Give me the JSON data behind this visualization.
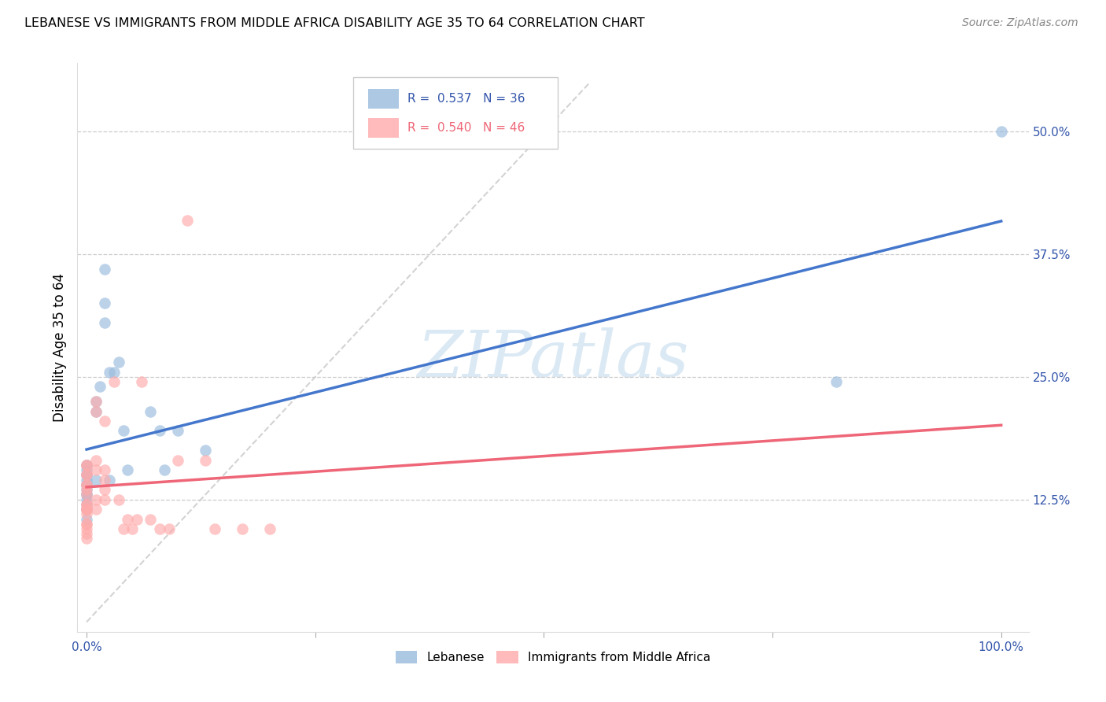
{
  "title": "LEBANESE VS IMMIGRANTS FROM MIDDLE AFRICA DISABILITY AGE 35 TO 64 CORRELATION CHART",
  "source": "Source: ZipAtlas.com",
  "ylabel": "Disability Age 35 to 64",
  "x_min": 0.0,
  "x_max": 1.0,
  "y_min": 0.0,
  "y_max": 0.55,
  "y_ticks": [
    0.125,
    0.25,
    0.375,
    0.5
  ],
  "y_tick_labels": [
    "12.5%",
    "25.0%",
    "37.5%",
    "50.0%"
  ],
  "legend_R1": "0.537",
  "legend_N1": "36",
  "legend_R2": "0.540",
  "legend_N2": "46",
  "color_blue": "#99BBDD",
  "color_pink": "#FFAAAA",
  "color_blue_line": "#4477CC",
  "color_pink_line": "#EE6677",
  "watermark_text": "ZIPatlas",
  "lebanese_x": [
    0.0,
    0.0,
    0.0,
    0.0,
    0.0,
    0.0,
    0.0,
    0.0,
    0.0,
    0.0,
    0.0,
    0.0,
    0.0,
    0.0,
    0.0,
    0.0,
    0.01,
    0.01,
    0.01,
    0.015,
    0.02,
    0.02,
    0.02,
    0.025,
    0.025,
    0.03,
    0.035,
    0.04,
    0.045,
    0.07,
    0.08,
    0.085,
    0.1,
    0.13,
    0.82,
    1.0
  ],
  "lebanese_y": [
    0.115,
    0.12,
    0.125,
    0.13,
    0.13,
    0.135,
    0.14,
    0.14,
    0.145,
    0.15,
    0.15,
    0.155,
    0.16,
    0.16,
    0.115,
    0.105,
    0.215,
    0.225,
    0.145,
    0.24,
    0.305,
    0.325,
    0.36,
    0.145,
    0.255,
    0.255,
    0.265,
    0.195,
    0.155,
    0.215,
    0.195,
    0.155,
    0.195,
    0.175,
    0.245,
    0.5
  ],
  "africa_x": [
    0.0,
    0.0,
    0.0,
    0.0,
    0.0,
    0.0,
    0.0,
    0.0,
    0.0,
    0.0,
    0.0,
    0.0,
    0.0,
    0.0,
    0.0,
    0.0,
    0.0,
    0.0,
    0.0,
    0.01,
    0.01,
    0.01,
    0.01,
    0.01,
    0.01,
    0.02,
    0.02,
    0.02,
    0.02,
    0.02,
    0.03,
    0.035,
    0.04,
    0.045,
    0.05,
    0.055,
    0.06,
    0.07,
    0.08,
    0.09,
    0.1,
    0.11,
    0.13,
    0.14,
    0.17,
    0.2
  ],
  "africa_y": [
    0.115,
    0.12,
    0.13,
    0.135,
    0.14,
    0.14,
    0.15,
    0.15,
    0.16,
    0.16,
    0.115,
    0.115,
    0.1,
    0.095,
    0.09,
    0.1,
    0.11,
    0.12,
    0.085,
    0.215,
    0.225,
    0.155,
    0.165,
    0.125,
    0.115,
    0.205,
    0.155,
    0.145,
    0.135,
    0.125,
    0.245,
    0.125,
    0.095,
    0.105,
    0.095,
    0.105,
    0.245,
    0.105,
    0.095,
    0.095,
    0.165,
    0.41,
    0.165,
    0.095,
    0.095,
    0.095
  ]
}
